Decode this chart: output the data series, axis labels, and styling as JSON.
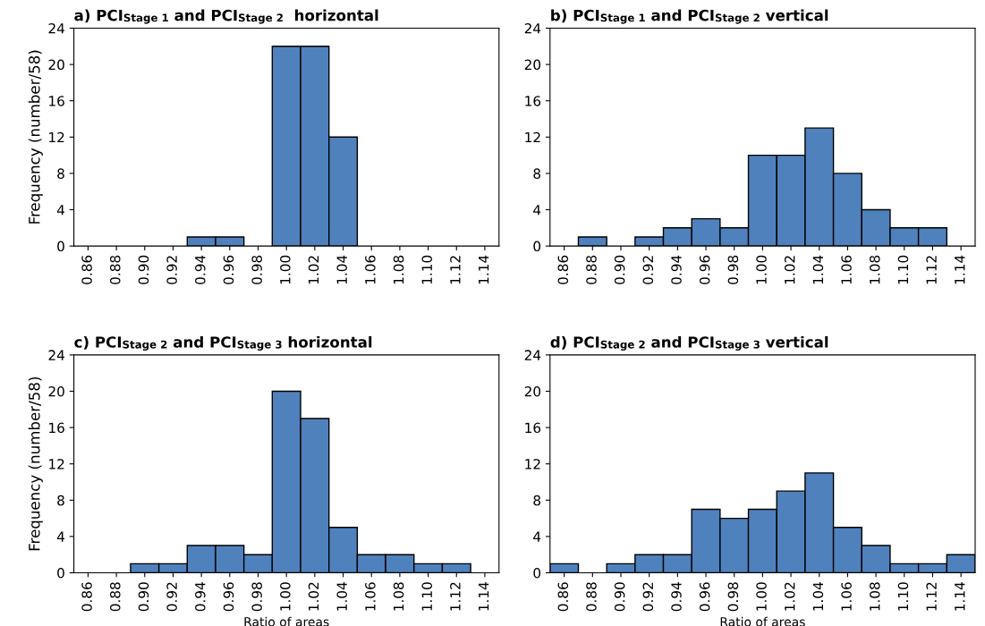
{
  "chart_data": [
    {
      "type": "bar",
      "title": "a) PCI$_{Stage 1}$ and PCI$_{Stage 2}$  horizontal",
      "ylabel": "Frequency (number/58)",
      "categories": [
        "0.86",
        "0.88",
        "0.90",
        "0.92",
        "0.94",
        "0.96",
        "0.98",
        "1.00",
        "1.02",
        "1.04",
        "1.06",
        "1.08",
        "1.10",
        "1.12",
        "1.14"
      ],
      "values": [
        0,
        0,
        0,
        0,
        1,
        1,
        0,
        22,
        22,
        12,
        0,
        0,
        0,
        0,
        0
      ],
      "color": "#4f81bd",
      "ylim": [
        0,
        24
      ],
      "yticks": [
        0,
        4,
        8,
        12,
        16,
        20,
        24
      ],
      "grid": false
    },
    {
      "type": "bar",
      "title": "b) PCI$_{Stage 1}$ and PCI$_{Stage 2}$ vertical",
      "categories": [
        "0.86",
        "0.88",
        "0.90",
        "0.92",
        "0.94",
        "0.96",
        "0.98",
        "1.00",
        "1.02",
        "1.04",
        "1.06",
        "1.08",
        "1.10",
        "1.12",
        "1.14"
      ],
      "values": [
        0,
        1,
        0,
        1,
        2,
        3,
        2,
        10,
        10,
        13,
        8,
        4,
        2,
        2,
        0
      ],
      "color": "#4f81bd",
      "ylim": [
        0,
        24
      ],
      "yticks": [
        0,
        4,
        8,
        12,
        16,
        20,
        24
      ],
      "grid": false
    },
    {
      "type": "bar",
      "title": "c) PCI$_{Stage 2}$ and PCI$_{Stage 3}$ horizontal",
      "ylabel": "Frequency (number/58)",
      "xlabel": "Ratio of areas",
      "categories": [
        "0.86",
        "0.88",
        "0.90",
        "0.92",
        "0.94",
        "0.96",
        "0.98",
        "1.00",
        "1.02",
        "1.04",
        "1.06",
        "1.08",
        "1.10",
        "1.12",
        "1.14"
      ],
      "values": [
        0,
        0,
        1,
        1,
        3,
        3,
        2,
        20,
        17,
        5,
        2,
        2,
        1,
        1,
        0
      ],
      "color": "#4f81bd",
      "ylim": [
        0,
        24
      ],
      "yticks": [
        0,
        4,
        8,
        12,
        16,
        20,
        24
      ],
      "grid": false
    },
    {
      "type": "bar",
      "title": "d) PCI$_{Stage 2}$ and PCI$_{Stage 3}$ vertical",
      "xlabel": "Ratio of areas",
      "categories": [
        "0.86",
        "0.88",
        "0.90",
        "0.92",
        "0.94",
        "0.96",
        "0.98",
        "1.00",
        "1.02",
        "1.04",
        "1.06",
        "1.08",
        "1.10",
        "1.12",
        "1.14"
      ],
      "values": [
        1,
        0,
        1,
        2,
        2,
        7,
        6,
        7,
        9,
        11,
        5,
        3,
        1,
        1,
        2
      ],
      "color": "#4f81bd",
      "ylim": [
        0,
        24
      ],
      "yticks": [
        0,
        4,
        8,
        12,
        16,
        20,
        24
      ],
      "grid": false
    }
  ]
}
